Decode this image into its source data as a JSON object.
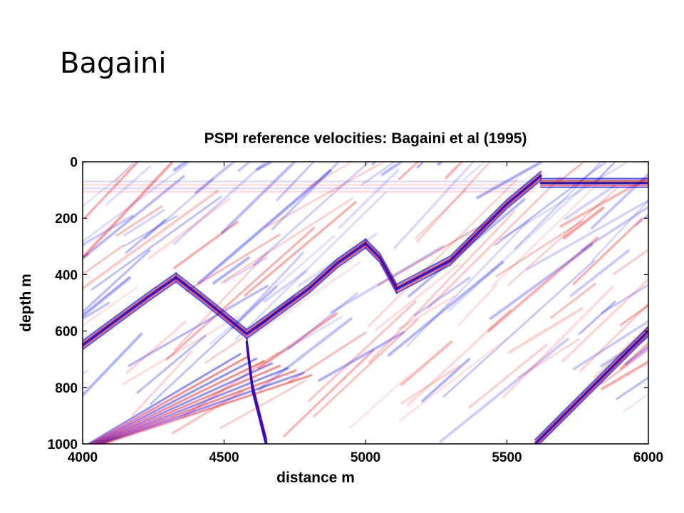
{
  "slide": {
    "title": "Bagaini"
  },
  "chart_data": {
    "type": "heatmap",
    "title": "PSPI reference velocities: Bagaini et al (1995)",
    "xlabel": "distance m",
    "ylabel": "depth m",
    "xlim": [
      4000,
      6000
    ],
    "ylim": [
      0,
      1000
    ],
    "y_inverted": true,
    "xticks": [
      4000,
      4500,
      5000,
      5500,
      6000
    ],
    "yticks": [
      0,
      200,
      400,
      600,
      800,
      1000
    ],
    "grid": false,
    "colormap": {
      "negative": "#0000dd",
      "zero": "#ffffff",
      "positive": "#e00000"
    },
    "reflectors": [
      {
        "name": "left-dipping-1",
        "points": [
          [
            4000,
            650
          ],
          [
            4230,
            480
          ],
          [
            4330,
            410
          ]
        ]
      },
      {
        "name": "syncline",
        "points": [
          [
            4330,
            410
          ],
          [
            4420,
            480
          ],
          [
            4580,
            610
          ],
          [
            4650,
            560
          ],
          [
            4800,
            450
          ],
          [
            4900,
            360
          ],
          [
            5000,
            290
          ]
        ]
      },
      {
        "name": "anticline-right-flank",
        "points": [
          [
            5000,
            290
          ],
          [
            5050,
            340
          ],
          [
            5110,
            450
          ]
        ]
      },
      {
        "name": "right-rising",
        "points": [
          [
            5110,
            450
          ],
          [
            5300,
            350
          ],
          [
            5500,
            150
          ],
          [
            5620,
            50
          ]
        ]
      },
      {
        "name": "top-right-flat",
        "points": [
          [
            5620,
            75
          ],
          [
            6000,
            75
          ]
        ]
      },
      {
        "name": "lower-right-dip",
        "points": [
          [
            5600,
            1000
          ],
          [
            6000,
            600
          ]
        ]
      },
      {
        "name": "bottom-diffraction",
        "points": [
          [
            4580,
            640
          ],
          [
            4600,
            800
          ],
          [
            4650,
            1000
          ]
        ]
      }
    ]
  }
}
